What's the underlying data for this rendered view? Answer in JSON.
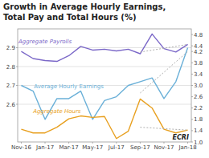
{
  "chart_data": {
    "type": "line",
    "title": "Growth in Average Hourly Earnings,",
    "subtitle": "Total Pay and Total Hours (%)",
    "categories": [
      "Nov-16",
      null,
      "Jan-17",
      null,
      "Mar-17",
      null,
      "May-17",
      null,
      "Jul-17",
      null,
      "Sep-17",
      null,
      "Nov-17",
      null,
      "Jan-18"
    ],
    "series": [
      {
        "name": "Average Hourly Earnings",
        "color": "#6ab0d8",
        "values": [
          2.7,
          2.67,
          2.52,
          2.63,
          2.63,
          2.67,
          2.52,
          2.62,
          2.64,
          2.7,
          2.72,
          2.74,
          2.63,
          2.72,
          2.9
        ]
      },
      {
        "name": "Aggregate Payrolls",
        "color": "#7b68c8",
        "axis": "y2",
        "values": [
          4.2,
          3.95,
          3.88,
          3.85,
          4.05,
          4.38,
          4.25,
          4.28,
          4.22,
          4.28,
          4.12,
          4.82,
          4.3,
          4.18,
          4.45
        ]
      },
      {
        "name": "Aggregate Hours",
        "color": "#e8a020",
        "axis": "y2",
        "values": [
          1.45,
          1.32,
          1.32,
          1.52,
          1.82,
          1.92,
          1.87,
          1.9,
          1.12,
          1.38,
          2.52,
          2.2,
          1.45,
          1.32,
          1.42
        ]
      },
      {
        "color": "#b0b0b0",
        "line_style": "dotted",
        "x": [
          "Sep-17",
          "Jan-18"
        ],
        "values": [
          2.66,
          2.88
        ]
      },
      {
        "color": "#b0b0b0",
        "line_style": "dotted",
        "axis": "y2",
        "x": [
          "Sep-17",
          "Jan-18"
        ],
        "values": [
          4.18,
          4.45
        ]
      },
      {
        "color": "#b0b0b0",
        "line_style": "dotted",
        "axis": "y2",
        "x": [
          "Sep-17",
          "Jan-18"
        ],
        "values": [
          1.52,
          1.42
        ]
      }
    ],
    "ylim": [
      2.4,
      3.0
    ],
    "yticks": [
      2.6,
      2.7,
      2.8,
      2.9
    ],
    "y2lim": [
      1.0,
      5.0
    ],
    "y2ticks": [
      {
        "value": 1.0,
        "label": "1.0"
      },
      1.4,
      1.8,
      2.2,
      2.6,
      {
        "value": 3.0,
        "label": "3.0"
      },
      3.4,
      3.8,
      4.2,
      4.4,
      4.8
    ],
    "grid": true,
    "annotations": [
      "ECRI"
    ]
  }
}
